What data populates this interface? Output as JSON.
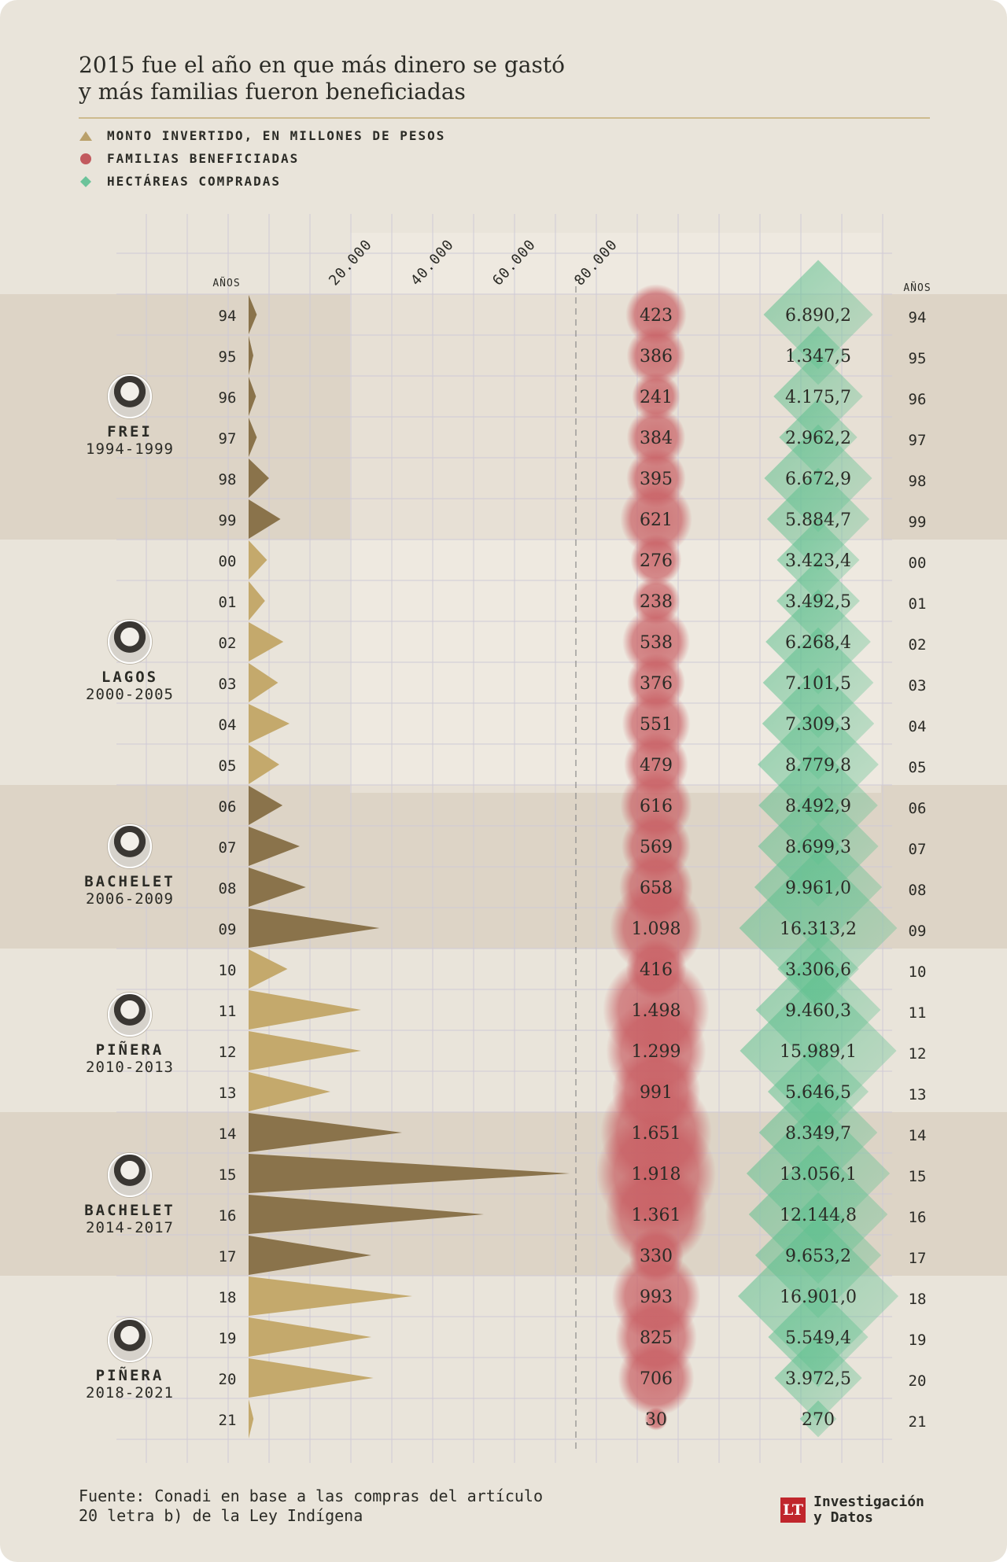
{
  "title_line1": "2015 fue el año en que más dinero se gastó",
  "title_line2": "y más familias fueron beneficiadas",
  "legend": [
    {
      "symbol": "triangle",
      "label": "MONTO INVERTIDO, EN MILLONES DE PESOS",
      "color": "#b9a06a"
    },
    {
      "symbol": "circle",
      "label": "FAMILIAS BENEFICIADAS",
      "color": "#c25a5e"
    },
    {
      "symbol": "diamond",
      "label": "HECTÁREAS COMPRADAS",
      "color": "#6cc39a"
    }
  ],
  "years_label": "AÑOS",
  "presidents": [
    {
      "name": "FREI",
      "years": "1994-1999"
    },
    {
      "name": "LAGOS",
      "years": "2000-2005"
    },
    {
      "name": "BACHELET",
      "years": "2006-2009"
    },
    {
      "name": "PIÑERA",
      "years": "2010-2013"
    },
    {
      "name": "BACHELET",
      "years": "2014-2017"
    },
    {
      "name": "PIÑERA",
      "years": "2018-2021"
    }
  ],
  "chart_data": {
    "type": "bar",
    "years": [
      "94",
      "95",
      "96",
      "97",
      "98",
      "99",
      "00",
      "01",
      "02",
      "03",
      "04",
      "05",
      "06",
      "07",
      "08",
      "09",
      "10",
      "11",
      "12",
      "13",
      "14",
      "15",
      "16",
      "17",
      "18",
      "19",
      "20",
      "21"
    ],
    "x_ticks": [
      "20.000",
      "40.000",
      "60.000",
      "80.000"
    ],
    "x_tick_values": [
      20000,
      40000,
      60000,
      80000
    ],
    "xlim": [
      0,
      95000
    ],
    "series": [
      {
        "name": "MONTO INVERTIDO, EN MILLONES DE PESOS",
        "mark": "triangle",
        "values": [
          2000,
          700,
          1800,
          2000,
          5000,
          7800,
          4500,
          4000,
          8500,
          7200,
          10000,
          7500,
          8300,
          12500,
          14000,
          32000,
          9500,
          27500,
          27500,
          20000,
          37500,
          78500,
          57500,
          30000,
          40000,
          30000,
          30500,
          1200
        ]
      },
      {
        "name": "FAMILIAS BENEFICIADAS",
        "mark": "circle",
        "values": [
          423,
          386,
          241,
          384,
          395,
          621,
          276,
          238,
          538,
          376,
          551,
          479,
          616,
          569,
          658,
          1098,
          416,
          1498,
          1299,
          991,
          1651,
          1918,
          1361,
          330,
          993,
          825,
          706,
          30
        ],
        "labels": [
          "423",
          "386",
          "241",
          "384",
          "395",
          "621",
          "276",
          "238",
          "538",
          "376",
          "551",
          "479",
          "616",
          "569",
          "658",
          "1.098",
          "416",
          "1.498",
          "1.299",
          "991",
          "1.651",
          "1.918",
          "1.361",
          "330",
          "993",
          "825",
          "706",
          "30"
        ]
      },
      {
        "name": "HECTÁREAS COMPRADAS",
        "mark": "diamond",
        "values": [
          6890.2,
          1347.5,
          4175.7,
          2962.2,
          6672.9,
          5884.7,
          3423.4,
          3492.5,
          6268.4,
          7101.5,
          7309.3,
          8779.8,
          8492.9,
          8699.3,
          9961.0,
          16313.2,
          3306.6,
          9460.3,
          15989.1,
          5646.5,
          8349.7,
          13056.1,
          12144.8,
          9653.2,
          16901.0,
          5549.4,
          3972.5,
          270
        ],
        "labels": [
          "6.890,2",
          "1.347,5",
          "4.175,7",
          "2.962,2",
          "6.672,9",
          "5.884,7",
          "3.423,4",
          "3.492,5",
          "6.268,4",
          "7.101,5",
          "7.309,3",
          "8.779,8",
          "8.492,9",
          "8.699,3",
          "9.961,0",
          "16.313,2",
          "3.306,6",
          "9.460,3",
          "15.989,1",
          "5.646,5",
          "8.349,7",
          "13.056,1",
          "12.144,8",
          "9.653,2",
          "16.901,0",
          "5.549,4",
          "3.972,5",
          "270"
        ]
      }
    ],
    "colors": {
      "triangle_light": "#c4a96c",
      "triangle_dark": "#8a734b",
      "circle": "#c85d62",
      "diamond": "#5fc08f",
      "band_dark": "#ddd4c6",
      "band_light": "#e9e4da",
      "grid": "#cfcad6"
    }
  },
  "source_line1": "Fuente: Conadi en base a las compras del artículo",
  "source_line2": "20 letra b) de la Ley Indígena",
  "brand_logo": "LT",
  "brand_line1": "Investigación",
  "brand_line2": "y Datos"
}
